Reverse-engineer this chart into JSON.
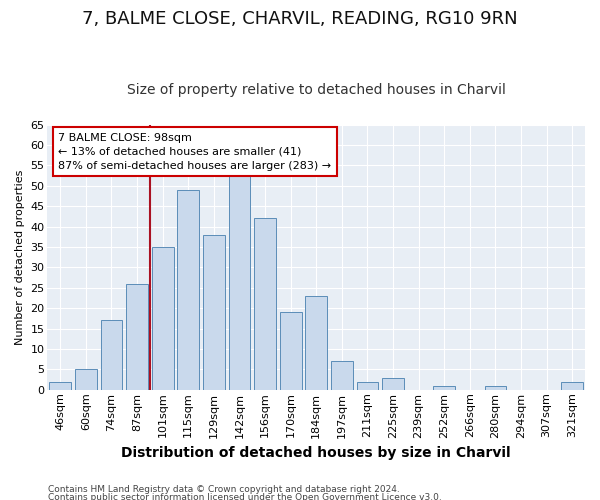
{
  "title_line1": "7, BALME CLOSE, CHARVIL, READING, RG10 9RN",
  "title_line2": "Size of property relative to detached houses in Charvil",
  "xlabel": "Distribution of detached houses by size in Charvil",
  "ylabel": "Number of detached properties",
  "bar_labels": [
    "46sqm",
    "60sqm",
    "74sqm",
    "87sqm",
    "101sqm",
    "115sqm",
    "129sqm",
    "142sqm",
    "156sqm",
    "170sqm",
    "184sqm",
    "197sqm",
    "211sqm",
    "225sqm",
    "239sqm",
    "252sqm",
    "266sqm",
    "280sqm",
    "294sqm",
    "307sqm",
    "321sqm"
  ],
  "bar_values": [
    2,
    5,
    17,
    26,
    35,
    49,
    38,
    54,
    42,
    19,
    23,
    7,
    2,
    3,
    0,
    1,
    0,
    1,
    0,
    0,
    2
  ],
  "bar_color": "#c9d9ec",
  "bar_edge_color": "#5b8db8",
  "vline_x": 4.0,
  "vline_color": "#aa1122",
  "ylim": [
    0,
    65
  ],
  "yticks": [
    0,
    5,
    10,
    15,
    20,
    25,
    30,
    35,
    40,
    45,
    50,
    55,
    60,
    65
  ],
  "annotation_text": "7 BALME CLOSE: 98sqm\n← 13% of detached houses are smaller (41)\n87% of semi-detached houses are larger (283) →",
  "annotation_box_facecolor": "#ffffff",
  "annotation_box_edgecolor": "#cc0000",
  "footer_line1": "Contains HM Land Registry data © Crown copyright and database right 2024.",
  "footer_line2": "Contains public sector information licensed under the Open Government Licence v3.0.",
  "fig_facecolor": "#ffffff",
  "plot_facecolor": "#e8eef5",
  "grid_color": "#ffffff",
  "title1_fontsize": 13,
  "title2_fontsize": 10,
  "xlabel_fontsize": 10,
  "ylabel_fontsize": 8,
  "tick_fontsize": 8,
  "annot_fontsize": 8,
  "footer_fontsize": 6.5
}
